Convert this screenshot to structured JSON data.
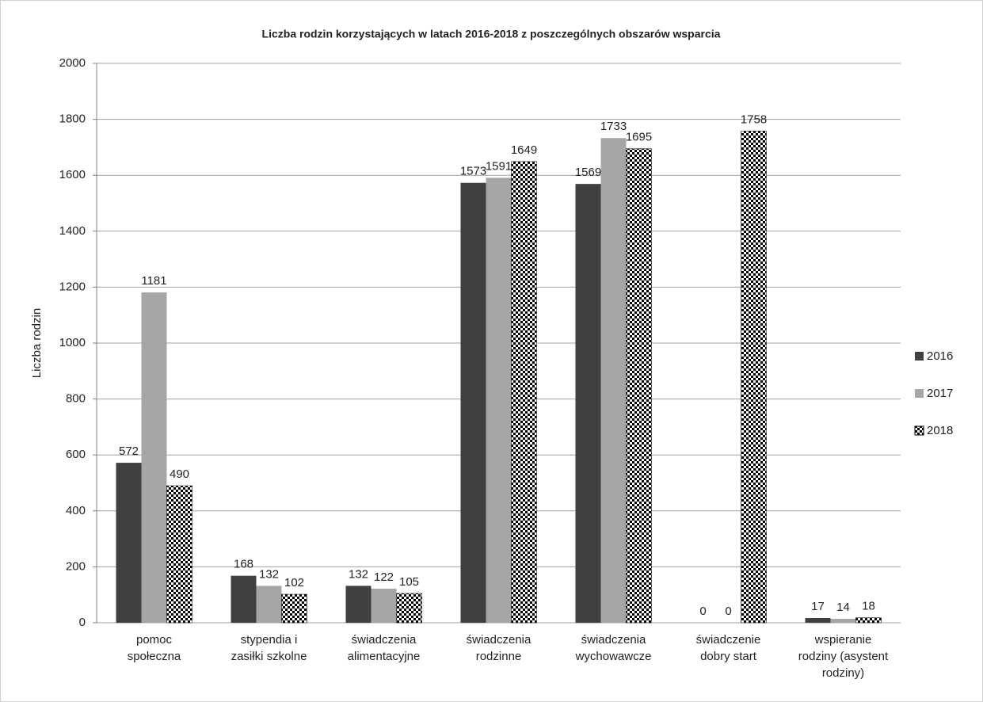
{
  "chart_data": {
    "type": "bar",
    "title": "Liczba rodzin korzystających  w latach 2016-2018 z poszczególnych  obszarów wsparcia",
    "y_label": "Liczba rodzin",
    "categories": [
      [
        "pomoc",
        "społeczna"
      ],
      [
        "stypendia i",
        "zasiłki szkolne"
      ],
      [
        "świadczenia",
        "alimentacyjne"
      ],
      [
        "świadczenia",
        "rodzinne"
      ],
      [
        "świadczenia",
        "wychowawcze"
      ],
      [
        "świadczenie",
        "dobry start"
      ],
      [
        "wspieranie",
        "rodziny (asystent",
        "rodziny)"
      ]
    ],
    "series": [
      {
        "name": "2016",
        "color": "#404040",
        "values": [
          572,
          168,
          132,
          1573,
          1569,
          0,
          17
        ]
      },
      {
        "name": "2017",
        "color": "#a6a6a6",
        "values": [
          1181,
          132,
          122,
          1591,
          1733,
          0,
          14
        ]
      },
      {
        "name": "2018",
        "color": "#000000",
        "pattern": "checkerboard",
        "values": [
          490,
          102,
          105,
          1649,
          1695,
          1758,
          18
        ]
      }
    ],
    "ylim": [
      0,
      2000
    ],
    "yticks": [
      0,
      200,
      400,
      600,
      800,
      1000,
      1200,
      1400,
      1600,
      1800,
      2000
    ],
    "grid": true,
    "legend": "right"
  }
}
